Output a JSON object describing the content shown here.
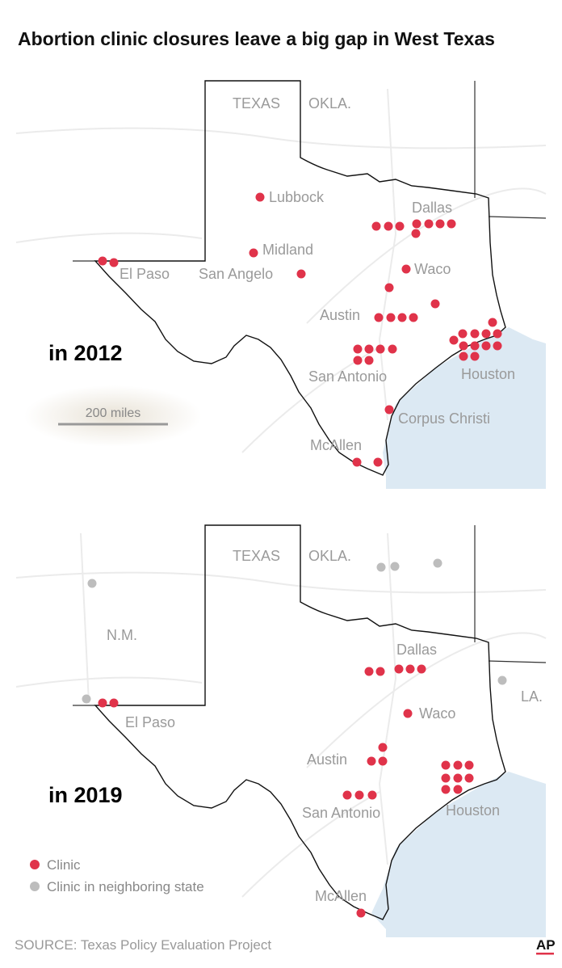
{
  "title": "Abortion clinic closures leave a big gap in West Texas",
  "maps": [
    {
      "label": "in 2012",
      "places": [
        "TEXAS",
        "OKLA.",
        "Lubbock",
        "Dallas",
        "Midland",
        "El Paso",
        "San Angelo",
        "Waco",
        "Austin",
        "San Antonio",
        "Houston",
        "Corpus Christi",
        "McAllen"
      ],
      "scale": "200 miles"
    },
    {
      "label": "in 2019",
      "places": [
        "TEXAS",
        "OKLA.",
        "N.M.",
        "Dallas",
        "LA.",
        "El Paso",
        "Waco",
        "Austin",
        "San Antonio",
        "Houston",
        "McAllen"
      ]
    }
  ],
  "legend": [
    "Clinic",
    "Clinic in neighboring state"
  ],
  "source": "SOURCE: Texas Policy Evaluation Project",
  "logo": "AP"
}
